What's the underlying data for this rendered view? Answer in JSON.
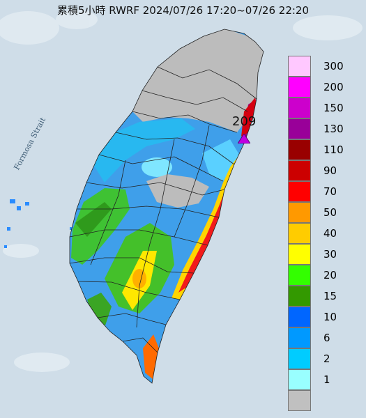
{
  "map": {
    "title": "累積5小時 RWRF 2024/07/26 17:20~07/26 22:20",
    "strait_label": "Formosa Strait",
    "max_value": "209",
    "colors": {
      "sea": "#cfdde8",
      "border": "#222222",
      "marker": "#c000e0"
    }
  },
  "legend": [
    {
      "label": "300",
      "color": "#ffc8ff"
    },
    {
      "label": "200",
      "color": "#ff00ff"
    },
    {
      "label": "150",
      "color": "#cc00cc"
    },
    {
      "label": "130",
      "color": "#990099"
    },
    {
      "label": "110",
      "color": "#990000"
    },
    {
      "label": "90",
      "color": "#cc0000"
    },
    {
      "label": "70",
      "color": "#ff0000"
    },
    {
      "label": "50",
      "color": "#ff9900"
    },
    {
      "label": "40",
      "color": "#ffcc00"
    },
    {
      "label": "30",
      "color": "#ffff00"
    },
    {
      "label": "20",
      "color": "#33ff00"
    },
    {
      "label": "15",
      "color": "#339900"
    },
    {
      "label": "10",
      "color": "#0066ff"
    },
    {
      "label": "6",
      "color": "#0099ff"
    },
    {
      "label": "2",
      "color": "#00ccff"
    },
    {
      "label": "1",
      "color": "#99ffff"
    },
    {
      "label": "",
      "color": "#c0c0c0"
    }
  ]
}
